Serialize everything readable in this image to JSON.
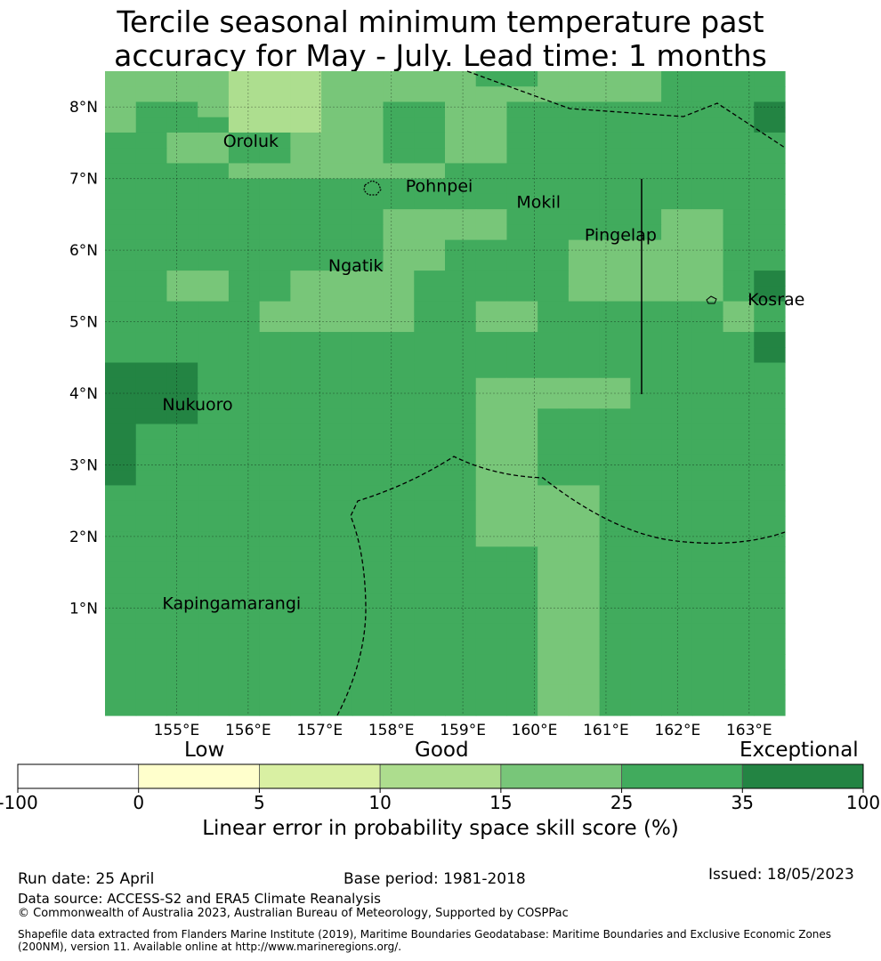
{
  "title": {
    "line1": "Tercile seasonal minimum temperature past",
    "line2": "accuracy for May - July. Lead time: 1 months"
  },
  "map": {
    "lon_range": [
      154.0,
      163.5
    ],
    "lat_range": [
      -0.5,
      8.5
    ],
    "lat_ticks": [
      {
        "v": 8,
        "label": "8°N"
      },
      {
        "v": 7,
        "label": "7°N"
      },
      {
        "v": 6,
        "label": "6°N"
      },
      {
        "v": 5,
        "label": "5°N"
      },
      {
        "v": 4,
        "label": "4°N"
      },
      {
        "v": 3,
        "label": "3°N"
      },
      {
        "v": 2,
        "label": "2°N"
      },
      {
        "v": 1,
        "label": "1°N"
      }
    ],
    "lon_ticks": [
      {
        "v": 155,
        "label": "155°E"
      },
      {
        "v": 156,
        "label": "156°E"
      },
      {
        "v": 157,
        "label": "157°E"
      },
      {
        "v": 158,
        "label": "158°E"
      },
      {
        "v": 159,
        "label": "159°E"
      },
      {
        "v": 160,
        "label": "160°E"
      },
      {
        "v": 161,
        "label": "161°E"
      },
      {
        "v": 162,
        "label": "162°E"
      },
      {
        "v": 163,
        "label": "163°E"
      }
    ],
    "skill_colors": {
      "B": "#adde8f",
      "C": "#78c679",
      "D": "#41ab5d",
      "E": "#238443"
    },
    "skill_grid": [
      "CCCCBBBCCCCCDDCCCCDDDD",
      "CCCCBBBCCCCCCCCCCCDDDD",
      "CDDCBBBCCDDCCDDDDDDDDE",
      "CDDDBBBCCDDCCDDDDDDDDE",
      "DDCCDDCCCDDCCDDDDDDDDD",
      "DDCCDDCCCDDCCDDDDDDDDD",
      "DDDDCCCCCCCDDDDDDDDDDD",
      "DDDDDDDDDDDDDDDDDDDDDD",
      "DDDDDDDDDDDDDDDDDDDDDD",
      "DDDDDDDDDCCCCDDDDDCCDD",
      "DDDDDDDDDCCCCDDDDDCCDD",
      "DDDDDDDDDCCDDDDCCCCCDD",
      "DDDDDDDDDCCDDDDCCCCCDD",
      "DDCCDDCCCCDDDDDCCCCCDE",
      "DDCCDDCCCCDDDDDCCCCCDE",
      "DDDDDCCCCCDDCCDDDDDDCD",
      "DDDDDCCCCCDDCCDDDDDDCD",
      "DDDDDDDDDDDDDDDDDDDDDE",
      "DDDDDDDDDDDDDDDDDDDDDE",
      "EEEDDDDDDDDDDDDDDDDDDD",
      "EEEDDDDDDDDDCCCCCDDDDD",
      "EEEDDDDDDDDDCCCCCDDDDD",
      "EEEDDDDDDDDDCCDDDDDDDD",
      "EDDDDDDDDDDDCCDDDDDDDD",
      "EDDDDDDDDDDDCCDDDDDDDD",
      "EDDDDDDDDDDDCCDDDDDDDD",
      "EDDDDDDDDDDDCCDDDDDDDD",
      "DDDDDDDDDDDDCCCCDDDDDD",
      "DDDDDDDDDDDDCCCCDDDDDD",
      "DDDDDDDDDDDDCCCCDDDDDD",
      "DDDDDDDDDDDDCCCCDDDDDD",
      "DDDDDDDDDDDDDDCCDDDDDD",
      "DDDDDDDDDDDDDDCCDDDDDD",
      "DDDDDDDDDDDDDDCCDDDDDD",
      "DDDDDDDDDDDDDDCCDDDDDD",
      "DDDDDDDDDDDDDDCCDDDDDD",
      "DDDDDDDDDDDDDDCCDDDDDD",
      "DDDDDDDDDDDDDDCCDDDDDD",
      "DDDDDDDDDDDDDDCCDDDDDD",
      "DDDDDDDDDDDDDDCCDDDDDD",
      "DDDDDDDDDDDDDDCCDDDDDD",
      "DDDDDDDDDDDDDDCCDDDDDD"
    ],
    "places": [
      {
        "name": "Oroluk",
        "lon": 155.65,
        "lat": 7.53
      },
      {
        "name": "Pohnpei",
        "lon": 158.2,
        "lat": 6.9
      },
      {
        "name": "Mokil",
        "lon": 159.75,
        "lat": 6.68
      },
      {
        "name": "Pingelap",
        "lon": 160.7,
        "lat": 6.22
      },
      {
        "name": "Ngatik",
        "lon": 157.12,
        "lat": 5.79
      },
      {
        "name": "Kosrae",
        "lon": 162.98,
        "lat": 5.32
      },
      {
        "name": "Nukuoro",
        "lon": 154.8,
        "lat": 3.85
      },
      {
        "name": "Kapingamarangi",
        "lon": 154.8,
        "lat": 1.07
      }
    ]
  },
  "colorbar": {
    "title": "Linear error in probability space skill score (%)",
    "tick_labels": [
      "-100",
      "0",
      "5",
      "10",
      "15",
      "25",
      "35",
      "100"
    ],
    "colors": [
      "#ffffff",
      "#ffffcc",
      "#d9f0a3",
      "#addd8e",
      "#78c679",
      "#41ab5d",
      "#238443"
    ],
    "categories": [
      "Low",
      "Good",
      "Exceptional"
    ]
  },
  "footer": {
    "run_date": "Run date: 25 April",
    "base_period": "Base period: 1981-2018",
    "issued": "Issued: 18/05/2023",
    "data_source": "Data source: ACCESS-S2 and ERA5 Climate Reanalysis",
    "copyright": "© Commonwealth of Australia 2023, Australian Bureau of Meteorology, Supported by COSPPac",
    "shapefile_line1": "Shapefile data extracted from Flanders Marine Institute (2019), Maritime Boundaries Geodatabase: Maritime Boundaries and Exclusive Economic Zones",
    "shapefile_line2": "(200NM), version 11. Available online at http://www.marineregions.org/."
  }
}
